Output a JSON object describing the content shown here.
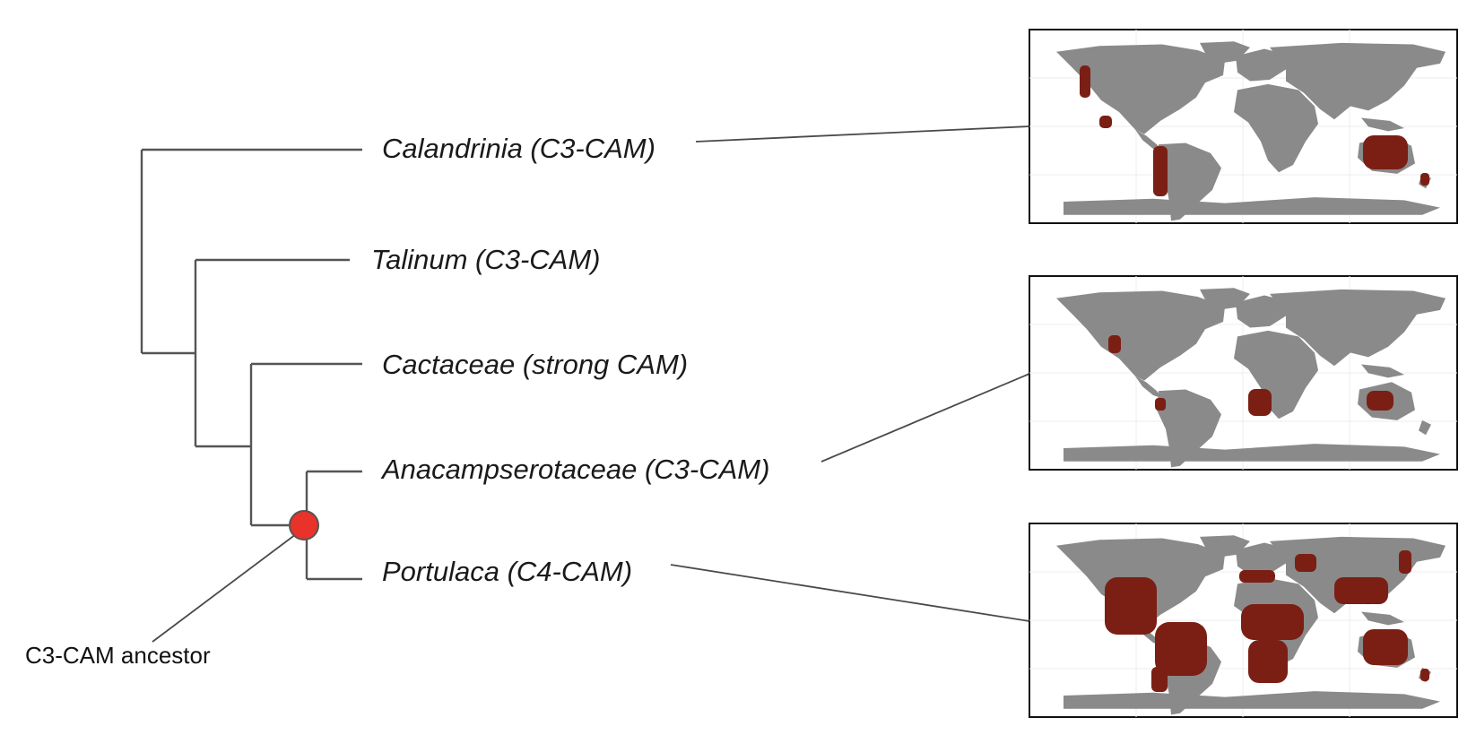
{
  "taxa": [
    {
      "label": "Calandrinia (C3-CAM)"
    },
    {
      "label": "Talinum (C3-CAM)"
    },
    {
      "label": "Cactaceae (strong CAM)"
    },
    {
      "label": "Anacampserotaceae (C3-CAM)"
    },
    {
      "label": "Portulaca (C4-CAM)"
    }
  ],
  "ancestor": {
    "label": "C3-CAM ancestor",
    "marker_color": "#e8322a"
  },
  "maps": [
    {
      "taxon": "Calandrinia (C3-CAM)"
    },
    {
      "taxon": "Anacampserotaceae (C3-CAM)"
    },
    {
      "taxon": "Portulaca (C4-CAM)"
    }
  ],
  "colors": {
    "land": "#8a8a8a",
    "occurrence": "#7b1f14",
    "branch": "#555555",
    "ancestor_node": "#e8322a"
  }
}
